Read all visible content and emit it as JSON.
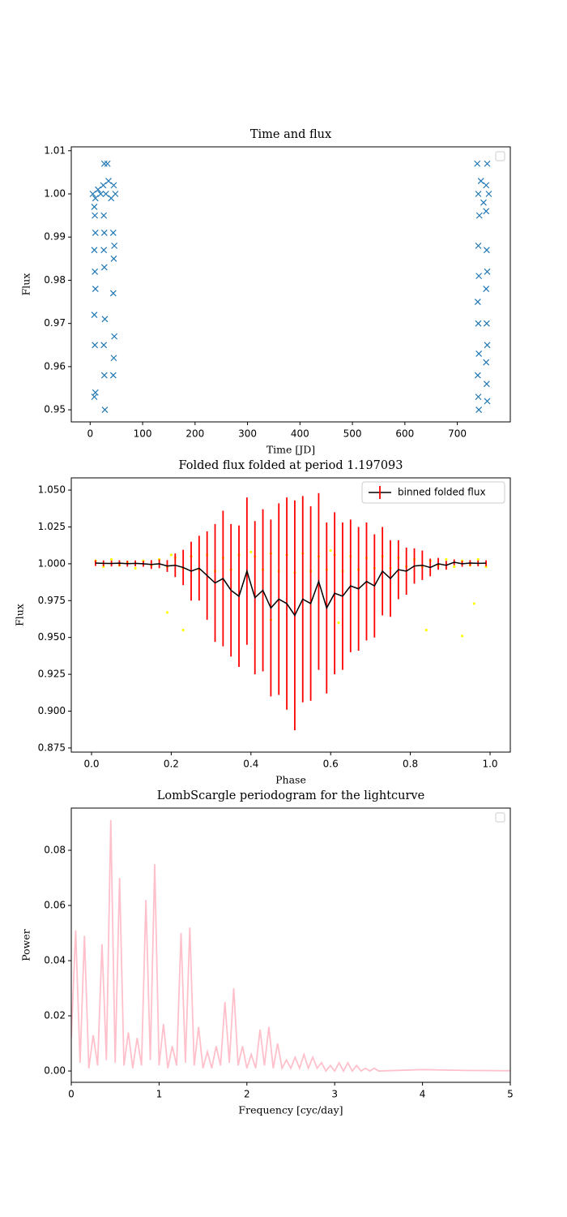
{
  "chart_data": [
    {
      "type": "scatter",
      "title": "Time and flux",
      "x_label": "Time [JD]",
      "y_label": "Flux",
      "legend": "upper right",
      "color": "#1f77b4",
      "marker": "x",
      "xlim": [
        -36,
        801
      ],
      "ylim": [
        0.9472,
        1.0109
      ],
      "xticks": [
        0,
        100,
        200,
        300,
        400,
        500,
        600,
        700
      ],
      "yticks": [
        0.95,
        0.96,
        0.97,
        0.98,
        0.99,
        {
          "value": 1.0,
          "label": "1.00"
        },
        1.01
      ],
      "x": [
        5,
        10,
        15,
        20,
        25,
        30,
        35,
        40,
        45,
        48,
        27,
        33,
        8,
        9,
        10,
        8,
        9,
        10,
        8,
        9,
        10,
        8,
        26,
        27,
        26,
        27,
        28,
        26,
        27,
        28,
        44,
        46,
        45,
        44,
        46,
        45,
        44,
        740,
        745,
        750,
        755,
        760,
        738,
        757,
        742,
        740,
        741,
        739,
        740,
        741,
        739,
        740,
        741,
        755,
        756,
        757,
        755,
        756,
        757,
        755,
        756,
        757
      ],
      "y": [
        1.0,
        0.999,
        1.001,
        1.0,
        1.002,
        1.0,
        1.003,
        0.999,
        1.002,
        1.0,
        1.007,
        1.007,
        0.997,
        0.995,
        0.991,
        0.987,
        0.982,
        0.978,
        0.972,
        0.965,
        0.954,
        0.953,
        0.995,
        0.991,
        0.987,
        0.983,
        0.971,
        0.965,
        0.958,
        0.95,
        0.991,
        0.988,
        0.985,
        0.977,
        0.967,
        0.962,
        0.958,
        1.0,
        1.003,
        0.998,
        1.002,
        1.0,
        1.007,
        1.007,
        0.995,
        0.988,
        0.981,
        0.975,
        0.97,
        0.963,
        0.958,
        0.953,
        0.95,
        0.996,
        0.987,
        0.982,
        0.978,
        0.97,
        0.965,
        0.961,
        0.956,
        0.952
      ]
    },
    {
      "type": "errorbar",
      "title": "Folded flux folded at period 1.197093",
      "x_label": "Phase",
      "y_label": "Flux",
      "legend": "upper right",
      "xlim": [
        -0.0508,
        1.0508
      ],
      "ylim": [
        0.8722,
        1.0583
      ],
      "xticks": [
        {
          "value": 0.0,
          "label": "0.0"
        },
        0.2,
        0.4,
        0.6,
        0.8,
        {
          "value": 1.0,
          "label": "1.0"
        }
      ],
      "yticks": [
        0.875,
        {
          "value": 0.9,
          "label": "0.900"
        },
        0.925,
        {
          "value": 0.95,
          "label": "0.950"
        },
        0.975,
        {
          "value": 1.0,
          "label": "1.000"
        },
        1.025,
        {
          "value": 1.05,
          "label": "1.050"
        }
      ],
      "points": {
        "color": "yellow",
        "x": [
          0.01,
          0.03,
          0.05,
          0.07,
          0.09,
          0.11,
          0.13,
          0.15,
          0.17,
          0.19,
          0.21,
          0.23,
          0.25,
          0.27,
          0.29,
          0.31,
          0.33,
          0.35,
          0.37,
          0.39,
          0.41,
          0.43,
          0.45,
          0.47,
          0.49,
          0.51,
          0.53,
          0.55,
          0.57,
          0.59,
          0.61,
          0.63,
          0.65,
          0.67,
          0.69,
          0.71,
          0.73,
          0.75,
          0.77,
          0.79,
          0.81,
          0.83,
          0.85,
          0.87,
          0.89,
          0.91,
          0.93,
          0.95,
          0.97,
          0.99,
          0.19,
          0.23,
          0.45,
          0.62,
          0.84,
          0.93,
          0.96,
          0.2,
          0.4,
          0.6
        ],
        "y": [
          1.002,
          0.998,
          1.003,
          0.999,
          1.001,
          0.997,
          1.002,
          0.999,
          1.003,
          0.998,
          1.004,
          0.997,
          1.005,
          0.996,
          1.006,
          0.995,
          1.004,
          0.996,
          1.006,
          0.994,
          1.005,
          0.996,
          1.007,
          0.995,
          1.006,
          0.994,
          1.007,
          0.995,
          1.005,
          0.996,
          1.006,
          0.995,
          1.005,
          0.996,
          1.004,
          0.997,
          1.005,
          0.997,
          1.004,
          0.998,
          1.003,
          0.998,
          1.002,
          0.999,
          1.003,
          0.998,
          1.002,
          0.999,
          1.003,
          0.998,
          0.967,
          0.955,
          0.962,
          0.96,
          0.955,
          0.951,
          0.973,
          1.006,
          1.008,
          1.009
        ]
      },
      "series": [
        {
          "name": "binned folded flux",
          "color": "black",
          "ecolor": "red",
          "x": [
            0.01,
            0.03,
            0.05,
            0.07,
            0.09,
            0.11,
            0.13,
            0.15,
            0.17,
            0.19,
            0.21,
            0.23,
            0.25,
            0.27,
            0.29,
            0.31,
            0.33,
            0.35,
            0.37,
            0.39,
            0.41,
            0.43,
            0.45,
            0.47,
            0.49,
            0.51,
            0.53,
            0.55,
            0.57,
            0.59,
            0.61,
            0.63,
            0.65,
            0.67,
            0.69,
            0.71,
            0.73,
            0.75,
            0.77,
            0.79,
            0.81,
            0.83,
            0.85,
            0.87,
            0.89,
            0.91,
            0.93,
            0.95,
            0.97,
            0.99
          ],
          "values": [
            1.0005,
            1.0003,
            1.0002,
            1.0004,
            1.0001,
            1.0003,
            1.0,
            0.9995,
            1.0,
            0.9985,
            0.999,
            0.9975,
            0.995,
            0.997,
            0.992,
            0.987,
            0.99,
            0.982,
            0.978,
            0.995,
            0.977,
            0.982,
            0.97,
            0.976,
            0.973,
            0.965,
            0.976,
            0.973,
            0.988,
            0.97,
            0.98,
            0.978,
            0.985,
            0.983,
            0.988,
            0.985,
            0.995,
            0.99,
            0.996,
            0.995,
            0.9985,
            0.999,
            0.9975,
            1.0,
            0.999,
            1.001,
            1.0,
            1.0005,
            1.0003,
            1.0004
          ],
          "errors": [
            0.002,
            0.002,
            0.002,
            0.002,
            0.002,
            0.002,
            0.002,
            0.003,
            0.003,
            0.004,
            0.008,
            0.012,
            0.02,
            0.022,
            0.03,
            0.04,
            0.046,
            0.045,
            0.048,
            0.05,
            0.052,
            0.055,
            0.06,
            0.065,
            0.072,
            0.078,
            0.07,
            0.066,
            0.06,
            0.058,
            0.055,
            0.05,
            0.045,
            0.042,
            0.04,
            0.035,
            0.03,
            0.026,
            0.02,
            0.016,
            0.012,
            0.01,
            0.006,
            0.004,
            0.003,
            0.002,
            0.002,
            0.002,
            0.002,
            0.002
          ]
        }
      ]
    },
    {
      "type": "line",
      "title": "LombScargle periodogram for the lightcurve",
      "x_label": "Frequency [cyc/day]",
      "y_label": "Power",
      "legend": "upper right",
      "color": "pink",
      "xlim": [
        0,
        5
      ],
      "ylim": [
        -0.0041,
        0.0953
      ],
      "xticks": [
        0,
        1,
        2,
        3,
        4,
        5
      ],
      "yticks": [
        {
          "value": 0.0,
          "label": "0.00"
        },
        {
          "value": 0.02,
          "label": "0.02"
        },
        {
          "value": 0.04,
          "label": "0.04"
        },
        {
          "value": 0.06,
          "label": "0.06"
        },
        {
          "value": 0.08,
          "label": "0.08"
        }
      ],
      "x": [
        0,
        0.05,
        0.1,
        0.15,
        0.2,
        0.25,
        0.3,
        0.35,
        0.4,
        0.45,
        0.5,
        0.55,
        0.6,
        0.65,
        0.7,
        0.75,
        0.8,
        0.85,
        0.9,
        0.95,
        1.0,
        1.05,
        1.1,
        1.15,
        1.2,
        1.25,
        1.3,
        1.35,
        1.4,
        1.45,
        1.5,
        1.55,
        1.6,
        1.65,
        1.7,
        1.75,
        1.8,
        1.85,
        1.9,
        1.95,
        2.0,
        2.05,
        2.1,
        2.15,
        2.2,
        2.25,
        2.3,
        2.35,
        2.4,
        2.45,
        2.5,
        2.55,
        2.6,
        2.65,
        2.7,
        2.75,
        2.8,
        2.85,
        2.9,
        2.95,
        3.0,
        3.05,
        3.1,
        3.15,
        3.2,
        3.25,
        3.3,
        3.35,
        3.4,
        3.45,
        3.5,
        4.0,
        4.5,
        5.0
      ],
      "values": [
        0.012,
        0.051,
        0.003,
        0.049,
        0.001,
        0.013,
        0.002,
        0.046,
        0.004,
        0.091,
        0.003,
        0.07,
        0.002,
        0.014,
        0.001,
        0.012,
        0.002,
        0.062,
        0.004,
        0.075,
        0.002,
        0.017,
        0.001,
        0.009,
        0.002,
        0.05,
        0.003,
        0.052,
        0.002,
        0.016,
        0.001,
        0.007,
        0.001,
        0.009,
        0.002,
        0.025,
        0.003,
        0.03,
        0.002,
        0.009,
        0.001,
        0.006,
        0.001,
        0.015,
        0.002,
        0.016,
        0.001,
        0.01,
        0.001,
        0.004,
        0.001,
        0.005,
        0.001,
        0.006,
        0.001,
        0.005,
        0.001,
        0.003,
        0.0,
        0.002,
        0.0,
        0.003,
        0.0,
        0.003,
        0.0,
        0.002,
        0.0,
        0.001,
        0.0,
        0.001,
        0.0,
        0.0005,
        0.0002,
        0.0001
      ]
    }
  ]
}
